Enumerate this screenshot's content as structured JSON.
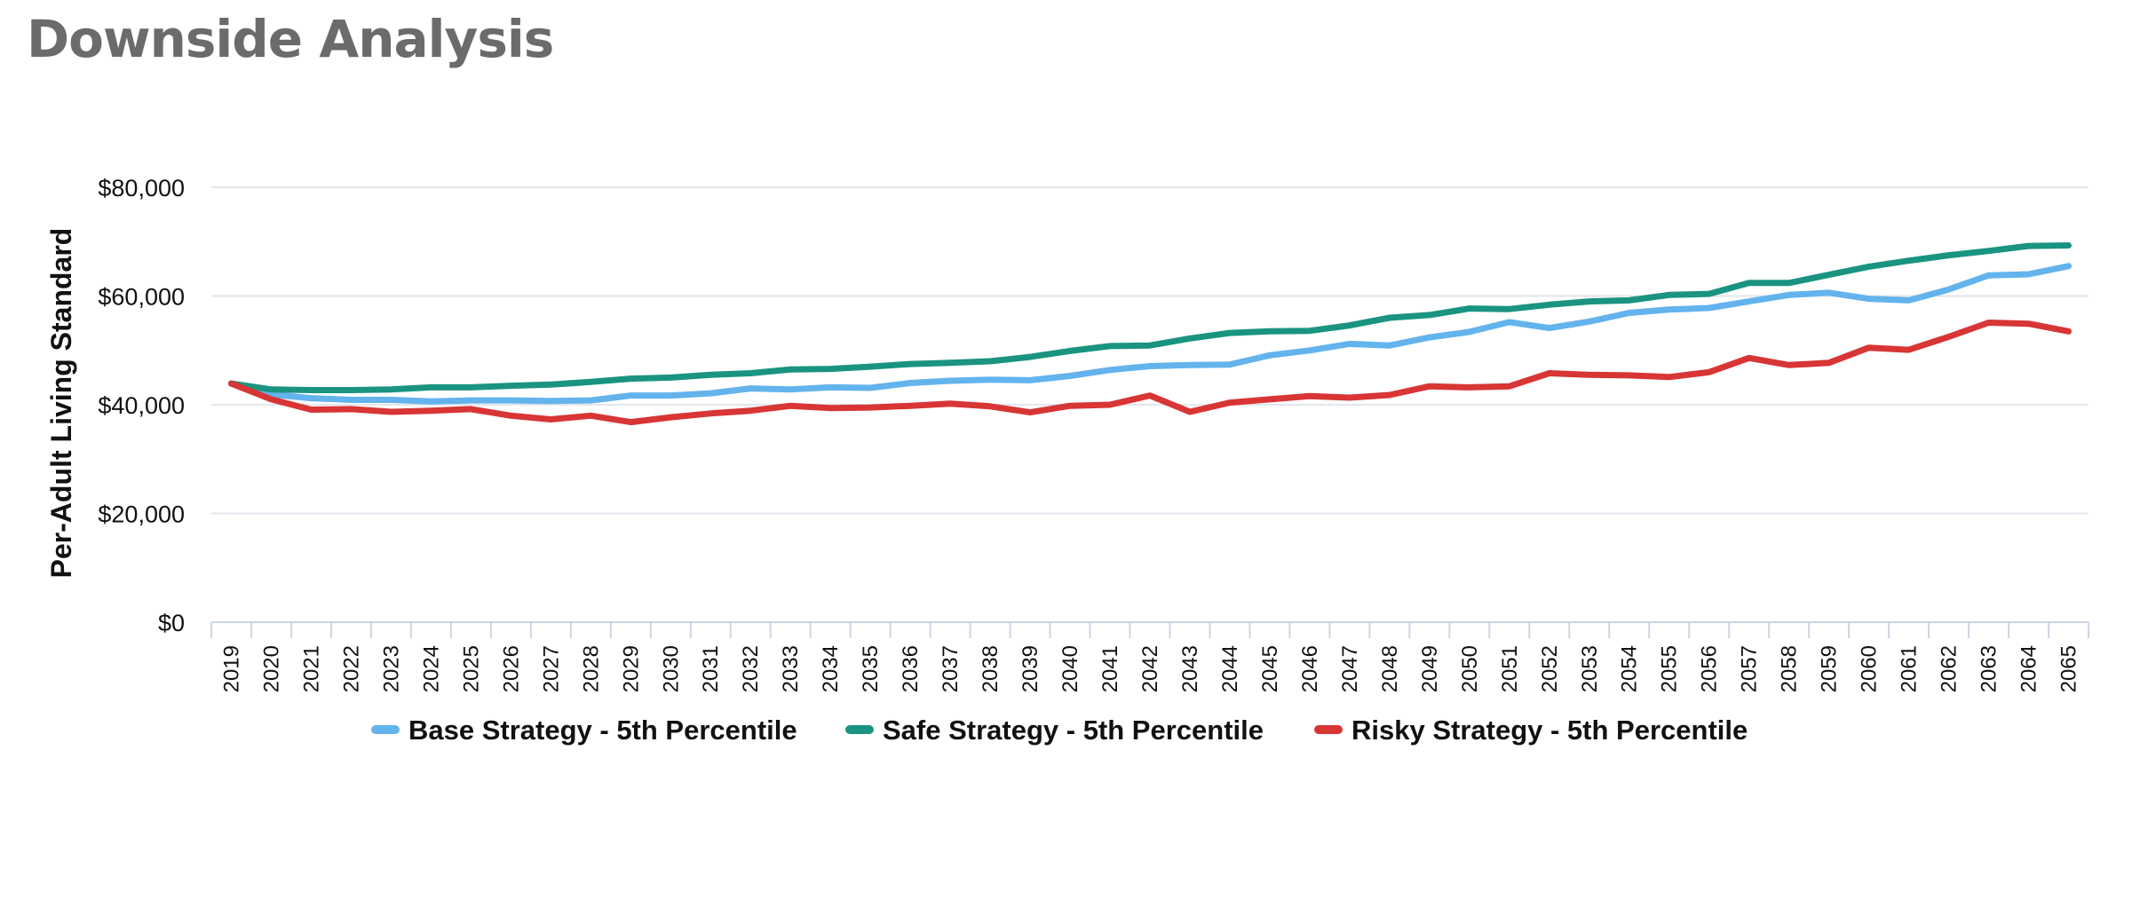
{
  "page": {
    "title": "Downside Analysis"
  },
  "chart_data": {
    "type": "line",
    "title": "",
    "xlabel": "",
    "ylabel": "Per-Adult Living Standard",
    "ylim": [
      0,
      80000
    ],
    "yticks": [
      0,
      20000,
      40000,
      60000,
      80000
    ],
    "ytick_labels": [
      "$0",
      "$20,000",
      "$40,000",
      "$60,000",
      "$80,000"
    ],
    "grid": true,
    "legend_position": "bottom",
    "categories": [
      "2019",
      "2020",
      "2021",
      "2022",
      "2023",
      "2024",
      "2025",
      "2026",
      "2027",
      "2028",
      "2029",
      "2030",
      "2031",
      "2032",
      "2033",
      "2034",
      "2035",
      "2036",
      "2037",
      "2038",
      "2039",
      "2040",
      "2041",
      "2042",
      "2043",
      "2044",
      "2045",
      "2046",
      "2047",
      "2048",
      "2049",
      "2050",
      "2051",
      "2052",
      "2053",
      "2054",
      "2055",
      "2056",
      "2057",
      "2058",
      "2059",
      "2060",
      "2061",
      "2062",
      "2063",
      "2064",
      "2065"
    ],
    "series": [
      {
        "name": "Base Strategy - 5th Percentile",
        "color": "#63b3ed",
        "values": [
          43900,
          41900,
          41200,
          40900,
          40900,
          40600,
          40800,
          40800,
          40700,
          40800,
          41700,
          41700,
          42100,
          43000,
          42800,
          43200,
          43100,
          44000,
          44400,
          44600,
          44500,
          45300,
          46400,
          47100,
          47300,
          47400,
          49100,
          50000,
          51200,
          50900,
          52400,
          53400,
          55200,
          54100,
          55300,
          56900,
          57500,
          57800,
          59000,
          60200,
          60600,
          59500,
          59200,
          61200,
          63800,
          64000,
          65500
        ]
      },
      {
        "name": "Safe Strategy - 5th Percentile",
        "color": "#1a9480",
        "values": [
          43900,
          42800,
          42700,
          42700,
          42800,
          43200,
          43200,
          43500,
          43700,
          44200,
          44800,
          45000,
          45500,
          45800,
          46500,
          46600,
          47000,
          47500,
          47700,
          48000,
          48800,
          49900,
          50800,
          50900,
          52200,
          53200,
          53500,
          53600,
          54600,
          56000,
          56500,
          57700,
          57600,
          58400,
          59000,
          59200,
          60200,
          60400,
          62400,
          62400,
          63900,
          65400,
          66500,
          67500,
          68300,
          69200,
          69300
        ]
      },
      {
        "name": "Risky Strategy - 5th Percentile",
        "color": "#d83535",
        "values": [
          43900,
          41000,
          39100,
          39200,
          38700,
          38900,
          39200,
          38000,
          37300,
          38000,
          36800,
          37700,
          38400,
          38900,
          39800,
          39400,
          39500,
          39800,
          40200,
          39700,
          38600,
          39800,
          40000,
          41700,
          38700,
          40400,
          41000,
          41600,
          41300,
          41800,
          43400,
          43200,
          43400,
          45800,
          45500,
          45400,
          45100,
          46000,
          48600,
          47300,
          47700,
          50500,
          50100,
          52500,
          55100,
          54900,
          53500
        ]
      }
    ]
  }
}
